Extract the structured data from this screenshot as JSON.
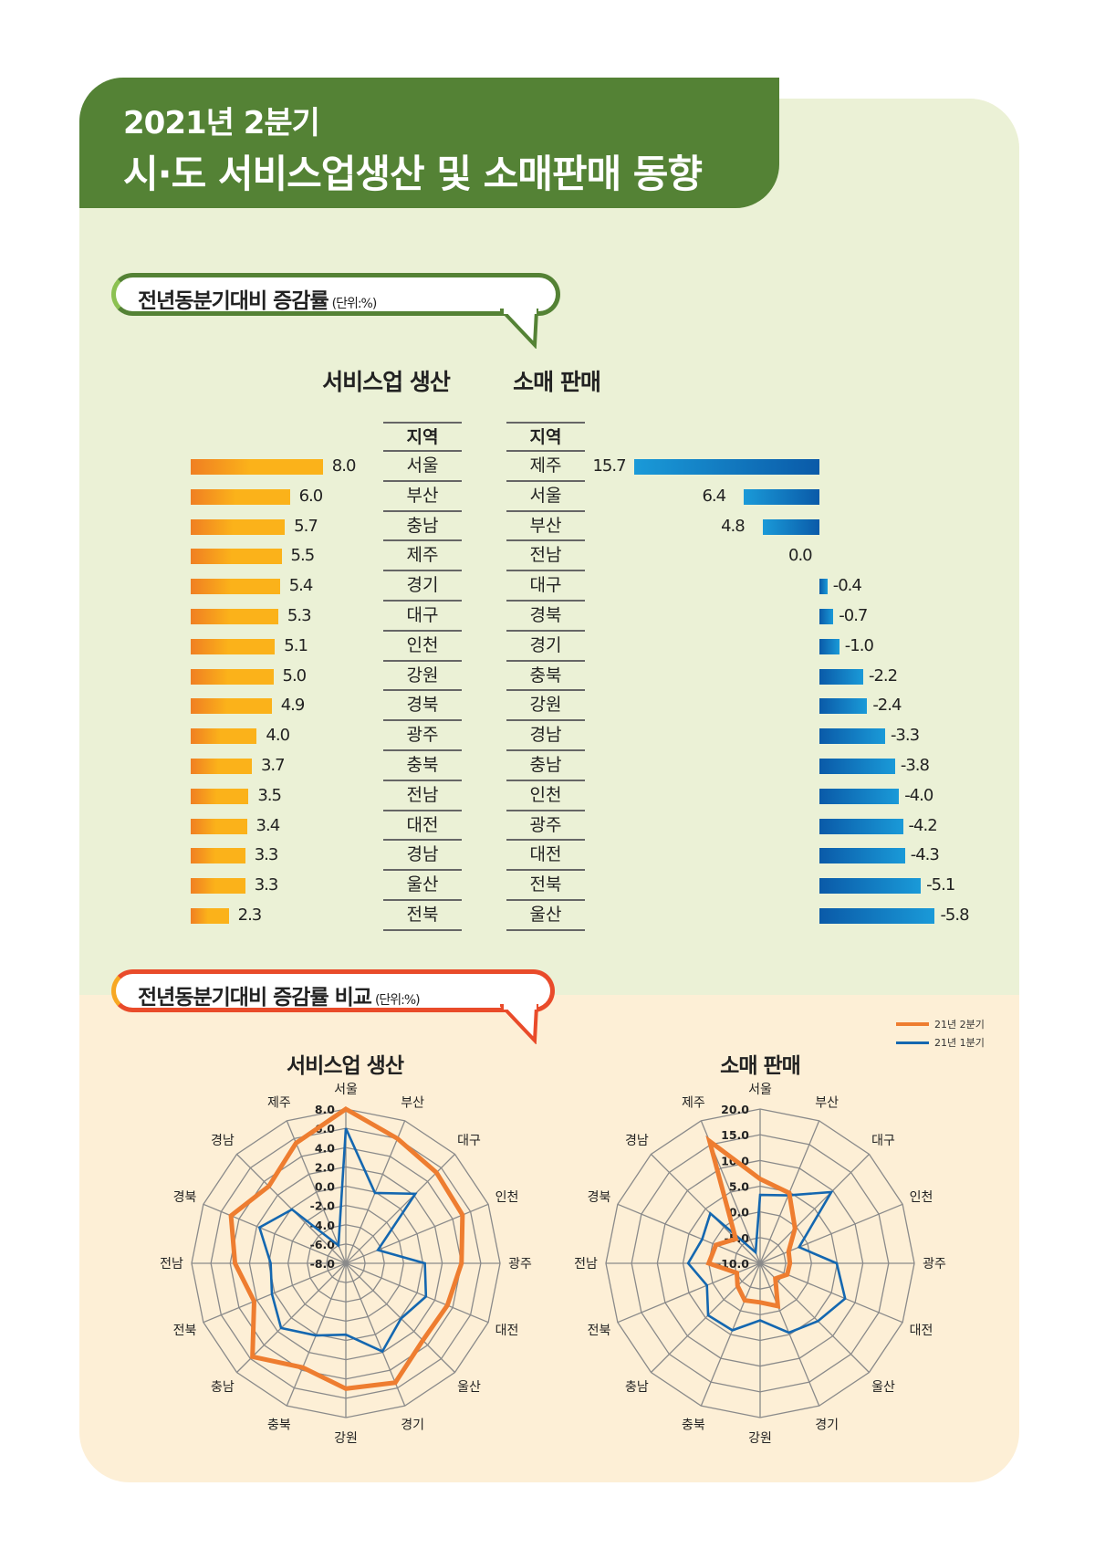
{
  "header": {
    "line1": "2021년 2분기",
    "line2": "시·도 서비스업생산 및 소매판매 동향"
  },
  "section1": {
    "title": "전년동분기대비 증감률",
    "unit": "(단위:%)"
  },
  "section2": {
    "title": "전년동분기대비 증감률 비교",
    "unit": "(단위:%)"
  },
  "colors": {
    "green": "#548235",
    "orange_bar": "#f9a51c",
    "blue_bar": "#0a63b0",
    "q2_line": "#ee7d30",
    "q1_line": "#1467b0"
  },
  "chart_data": [
    {
      "type": "bar",
      "title": "서비스업 생산",
      "column_header": "지역",
      "categories": [
        "서울",
        "부산",
        "충남",
        "제주",
        "경기",
        "대구",
        "인천",
        "강원",
        "경북",
        "광주",
        "충북",
        "전남",
        "대전",
        "경남",
        "울산",
        "전북"
      ],
      "values": [
        8.0,
        6.0,
        5.7,
        5.5,
        5.4,
        5.3,
        5.1,
        5.0,
        4.9,
        4.0,
        3.7,
        3.5,
        3.4,
        3.3,
        3.3,
        2.3
      ],
      "labels": [
        "8.0",
        "6.0",
        "5.7",
        "5.5",
        "5.4",
        "5.3",
        "5.1",
        "5.0",
        "4.9",
        "4.0",
        "3.7",
        "3.5",
        "3.4",
        "3.3",
        "3.3",
        "2.3"
      ]
    },
    {
      "type": "bar",
      "title": "소매 판매",
      "column_header": "지역",
      "categories": [
        "제주",
        "서울",
        "부산",
        "전남",
        "대구",
        "경북",
        "경기",
        "충북",
        "강원",
        "경남",
        "충남",
        "인천",
        "광주",
        "대전",
        "전북",
        "울산"
      ],
      "values": [
        15.7,
        6.4,
        4.8,
        0.0,
        -0.4,
        -0.7,
        -1.0,
        -2.2,
        -2.4,
        -3.3,
        -3.8,
        -4.0,
        -4.2,
        -4.3,
        -5.1,
        -5.8
      ],
      "labels": [
        "15.7",
        "6.4",
        "4.8",
        "0.0",
        "-0.4",
        "-0.7",
        "-1.0",
        "-2.2",
        "-2.4",
        "-3.3",
        "-3.8",
        "-4.0",
        "-4.2",
        "-4.3",
        "-5.1",
        "-5.8"
      ]
    },
    {
      "type": "radar",
      "title": "서비스업 생산",
      "axes": [
        "서울",
        "부산",
        "대구",
        "인천",
        "광주",
        "대전",
        "울산",
        "경기",
        "강원",
        "충북",
        "충남",
        "전북",
        "전남",
        "경북",
        "경남",
        "제주"
      ],
      "range": [
        -8,
        8
      ],
      "ticks": [
        "8.0",
        "6.0",
        "4.0",
        "2.0",
        "0.0",
        "-2.0",
        "-4.0",
        "-6.0",
        "-8.0"
      ],
      "series": [
        {
          "name": "21년 2분기",
          "values": [
            8.0,
            6.0,
            5.3,
            5.1,
            4.0,
            3.4,
            3.3,
            5.4,
            5.0,
            3.7,
            5.7,
            2.3,
            3.5,
            4.9,
            3.3,
            5.5
          ]
        },
        {
          "name": "21년 1분기",
          "values": [
            6.0,
            -0.1,
            2.2,
            -4.4,
            0.2,
            1.0,
            0.1,
            1.9,
            -0.6,
            0.1,
            1.5,
            0.3,
            -0.2,
            1.7,
            -0.1,
            -6.0
          ]
        }
      ]
    },
    {
      "type": "radar",
      "title": "소매 판매",
      "axes": [
        "서울",
        "부산",
        "대구",
        "인천",
        "광주",
        "대전",
        "울산",
        "경기",
        "강원",
        "충북",
        "충남",
        "전북",
        "전남",
        "경북",
        "경남",
        "제주"
      ],
      "range": [
        -10,
        20
      ],
      "ticks": [
        "20.0",
        "15.0",
        "10.0",
        "5.0",
        "0.0",
        "-5.0",
        "-10.0"
      ],
      "series": [
        {
          "name": "21년 2분기",
          "values": [
            6.4,
            4.8,
            -0.4,
            -4.0,
            -4.2,
            -4.3,
            -5.8,
            -1.0,
            -2.4,
            -2.2,
            -3.8,
            -5.1,
            0.0,
            -0.7,
            -3.3,
            15.7
          ]
        },
        {
          "name": "21년 1분기",
          "values": [
            3.3,
            4.3,
            9.6,
            -1.8,
            4.9,
            7.9,
            5.9,
            4.6,
            1.1,
            4.1,
            4.3,
            1.2,
            4.0,
            2.2,
            3.7,
            -7.7
          ]
        }
      ]
    }
  ],
  "legend": {
    "items": [
      "21년 2분기",
      "21년 1분기"
    ],
    "position": "top-right"
  }
}
